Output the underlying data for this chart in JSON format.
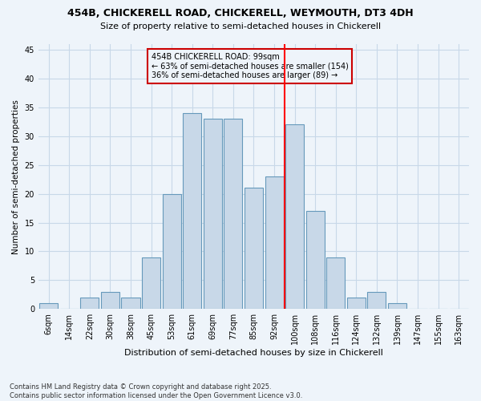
{
  "title_line1": "454B, CHICKERELL ROAD, CHICKERELL, WEYMOUTH, DT3 4DH",
  "title_line2": "Size of property relative to semi-detached houses in Chickerell",
  "xlabel": "Distribution of semi-detached houses by size in Chickerell",
  "ylabel": "Number of semi-detached properties",
  "footer_line1": "Contains HM Land Registry data © Crown copyright and database right 2025.",
  "footer_line2": "Contains public sector information licensed under the Open Government Licence v3.0.",
  "categories": [
    "6sqm",
    "14sqm",
    "22sqm",
    "30sqm",
    "38sqm",
    "45sqm",
    "53sqm",
    "61sqm",
    "69sqm",
    "77sqm",
    "85sqm",
    "92sqm",
    "100sqm",
    "108sqm",
    "116sqm",
    "124sqm",
    "132sqm",
    "139sqm",
    "147sqm",
    "155sqm",
    "163sqm"
  ],
  "values": [
    1,
    0,
    2,
    3,
    2,
    9,
    20,
    34,
    33,
    33,
    21,
    23,
    32,
    17,
    9,
    2,
    3,
    1,
    0,
    0,
    0
  ],
  "bar_color": "#c8d8e8",
  "bar_edge_color": "#6699bb",
  "grid_color": "#c8d8e8",
  "background_color": "#eef4fa",
  "annotation_text_line1": "454B CHICKERELL ROAD: 99sqm",
  "annotation_text_line2": "← 63% of semi-detached houses are smaller (154)",
  "annotation_text_line3": "36% of semi-detached houses are larger (89) →",
  "annotation_box_color": "#cc0000",
  "red_line_x": 11.5,
  "ylim": [
    0,
    46
  ],
  "yticks": [
    0,
    5,
    10,
    15,
    20,
    25,
    30,
    35,
    40,
    45
  ]
}
